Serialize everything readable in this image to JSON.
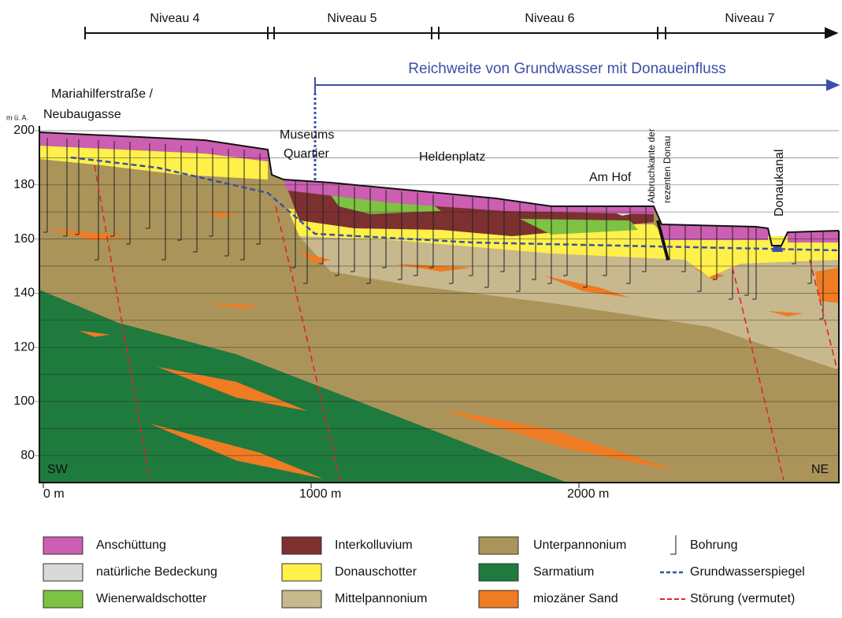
{
  "levels": [
    "Niveau 4",
    "Niveau 5",
    "Niveau 6",
    "Niveau 7"
  ],
  "reach": "Reichweite von Grundwasser mit Donaueinfluss",
  "y_axis": {
    "unit": "m ü. A.",
    "ticks": [
      200,
      180,
      160,
      140,
      120,
      100,
      80
    ]
  },
  "x_axis": {
    "ticks": [
      "0 m",
      "1000 m",
      "2000 m"
    ]
  },
  "annotations": {
    "start_1": "Mariahilferstraße /",
    "start_2": "Neubaugasse",
    "mq_1": "Museums",
    "mq_2": "Quartier",
    "heldenplatz": "Heldenplatz",
    "am_hof": "Am Hof",
    "edge_1": "Abbruchkante der",
    "edge_2": "rezenten Donau",
    "canal": "Donaukanal",
    "sw": "SW",
    "ne": "NE"
  },
  "legend": [
    "Anschüttung",
    "natürliche Bedeckung",
    "Wienerwaldschotter",
    "Interkolluvium",
    "Donauschotter",
    "Mittelpannonium",
    "Unterpannonium",
    "Sarmatium",
    "miozäner Sand",
    "Bohrung",
    "Grundwasserspiegel",
    "Störung (vermutet)"
  ]
}
